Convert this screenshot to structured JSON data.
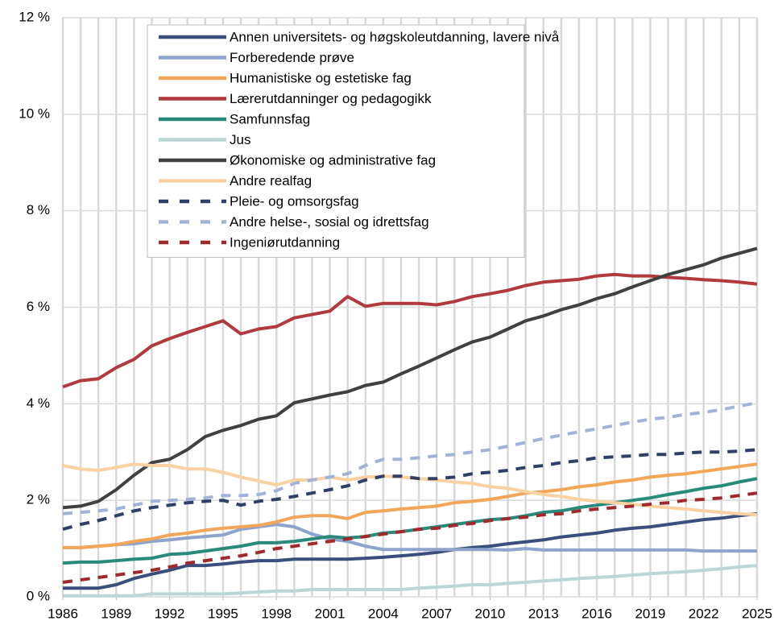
{
  "chart_data": {
    "type": "line",
    "x": [
      1986,
      1987,
      1988,
      1989,
      1990,
      1991,
      1992,
      1993,
      1994,
      1995,
      1996,
      1997,
      1998,
      1999,
      2000,
      2001,
      2002,
      2003,
      2004,
      2005,
      2006,
      2007,
      2008,
      2009,
      2010,
      2011,
      2012,
      2013,
      2014,
      2015,
      2016,
      2017,
      2018,
      2019,
      2020,
      2021,
      2022,
      2023,
      2024,
      2025
    ],
    "xlim": [
      1986,
      2025
    ],
    "xticks": [
      1986,
      1989,
      1992,
      1995,
      1998,
      2001,
      2004,
      2007,
      2010,
      2013,
      2016,
      2019,
      2022,
      2025
    ],
    "ylim": [
      0,
      12
    ],
    "yticks": [
      {
        "value": 0,
        "label": "0 %"
      },
      {
        "value": 2,
        "label": "2 %"
      },
      {
        "value": 4,
        "label": "4 %"
      },
      {
        "value": 6,
        "label": "6 %"
      },
      {
        "value": 8,
        "label": "8 %"
      },
      {
        "value": 10,
        "label": "10 %"
      },
      {
        "value": 12,
        "label": "12 %"
      }
    ],
    "grid": true,
    "legend": "top-center",
    "series": [
      {
        "name": "Annen universitets- og høgskoleutdanning, lavere nivå",
        "color": "#3c4f7c",
        "style": "solid",
        "values": [
          0.18,
          0.18,
          0.18,
          0.25,
          0.38,
          0.47,
          0.55,
          0.65,
          0.65,
          0.68,
          0.72,
          0.75,
          0.75,
          0.78,
          0.78,
          0.78,
          0.78,
          0.8,
          0.82,
          0.85,
          0.88,
          0.92,
          0.98,
          1.02,
          1.05,
          1.1,
          1.14,
          1.18,
          1.24,
          1.28,
          1.32,
          1.38,
          1.42,
          1.45,
          1.5,
          1.55,
          1.6,
          1.63,
          1.68,
          1.72
        ]
      },
      {
        "name": "Forberedende prøve",
        "color": "#8fa3cc",
        "style": "solid",
        "values": [
          1.02,
          1.02,
          1.05,
          1.08,
          1.1,
          1.15,
          1.18,
          1.22,
          1.25,
          1.28,
          1.4,
          1.45,
          1.5,
          1.45,
          1.3,
          1.2,
          1.15,
          1.05,
          0.98,
          0.98,
          0.98,
          0.98,
          0.98,
          0.98,
          0.98,
          0.97,
          1.0,
          0.97,
          0.97,
          0.97,
          0.97,
          0.97,
          0.97,
          0.97,
          0.97,
          0.97,
          0.95,
          0.95,
          0.95,
          0.95
        ]
      },
      {
        "name": "Humanistiske og estetiske fag",
        "color": "#f2a65a",
        "style": "solid",
        "values": [
          1.02,
          1.02,
          1.05,
          1.08,
          1.15,
          1.2,
          1.28,
          1.32,
          1.38,
          1.42,
          1.45,
          1.48,
          1.55,
          1.65,
          1.68,
          1.68,
          1.62,
          1.75,
          1.78,
          1.82,
          1.85,
          1.88,
          1.95,
          1.98,
          2.02,
          2.08,
          2.15,
          2.18,
          2.22,
          2.28,
          2.32,
          2.38,
          2.42,
          2.48,
          2.52,
          2.55,
          2.6,
          2.65,
          2.7,
          2.75
        ]
      },
      {
        "name": "Lærerutdanninger og pedagogikk",
        "color": "#b03a3e",
        "style": "solid",
        "values": [
          4.35,
          4.48,
          4.52,
          4.75,
          4.92,
          5.2,
          5.35,
          5.48,
          5.6,
          5.72,
          5.45,
          5.55,
          5.6,
          5.78,
          5.85,
          5.92,
          6.22,
          6.02,
          6.08,
          6.08,
          6.08,
          6.05,
          6.12,
          6.22,
          6.28,
          6.35,
          6.45,
          6.52,
          6.55,
          6.58,
          6.65,
          6.68,
          6.65,
          6.65,
          6.62,
          6.6,
          6.57,
          6.55,
          6.52,
          6.48
        ]
      },
      {
        "name": "Samfunnsfag",
        "color": "#2a8a7a",
        "style": "solid",
        "values": [
          0.7,
          0.72,
          0.72,
          0.75,
          0.78,
          0.8,
          0.88,
          0.9,
          0.95,
          1.0,
          1.05,
          1.12,
          1.12,
          1.15,
          1.2,
          1.25,
          1.22,
          1.25,
          1.32,
          1.35,
          1.4,
          1.45,
          1.5,
          1.55,
          1.6,
          1.62,
          1.68,
          1.75,
          1.78,
          1.85,
          1.9,
          1.95,
          2.0,
          2.05,
          2.12,
          2.18,
          2.25,
          2.3,
          2.38,
          2.45
        ]
      },
      {
        "name": "Jus",
        "color": "#bcd6d6",
        "style": "solid",
        "values": [
          0.02,
          0.02,
          0.02,
          0.02,
          0.02,
          0.06,
          0.06,
          0.06,
          0.06,
          0.06,
          0.08,
          0.1,
          0.12,
          0.12,
          0.15,
          0.15,
          0.15,
          0.15,
          0.15,
          0.15,
          0.18,
          0.2,
          0.22,
          0.25,
          0.25,
          0.28,
          0.3,
          0.33,
          0.35,
          0.38,
          0.4,
          0.42,
          0.45,
          0.48,
          0.5,
          0.52,
          0.55,
          0.58,
          0.62,
          0.65
        ]
      },
      {
        "name": "Økonomiske og administrative fag",
        "color": "#404040",
        "style": "solid",
        "values": [
          1.85,
          1.88,
          1.98,
          2.22,
          2.52,
          2.78,
          2.85,
          3.05,
          3.32,
          3.45,
          3.55,
          3.68,
          3.75,
          4.02,
          4.1,
          4.18,
          4.25,
          4.38,
          4.45,
          4.62,
          4.78,
          4.95,
          5.12,
          5.28,
          5.38,
          5.55,
          5.72,
          5.82,
          5.95,
          6.05,
          6.18,
          6.28,
          6.42,
          6.55,
          6.68,
          6.78,
          6.88,
          7.02,
          7.12,
          7.22
        ]
      },
      {
        "name": "Andre realfag",
        "color": "#f9d2a4",
        "style": "solid",
        "values": [
          2.72,
          2.65,
          2.62,
          2.68,
          2.75,
          2.72,
          2.72,
          2.65,
          2.65,
          2.58,
          2.48,
          2.4,
          2.32,
          2.42,
          2.42,
          2.48,
          2.42,
          2.48,
          2.5,
          2.48,
          2.45,
          2.42,
          2.38,
          2.35,
          2.28,
          2.25,
          2.18,
          2.12,
          2.08,
          2.02,
          1.98,
          1.95,
          1.92,
          1.88,
          1.85,
          1.82,
          1.78,
          1.75,
          1.72,
          1.7
        ]
      },
      {
        "name": "Pleie- og omsorgsfag",
        "color": "#2f3f66",
        "style": "dashed",
        "values": [
          1.4,
          1.5,
          1.58,
          1.68,
          1.78,
          1.85,
          1.9,
          1.95,
          1.98,
          2.0,
          1.9,
          1.98,
          2.02,
          2.08,
          2.15,
          2.22,
          2.3,
          2.42,
          2.5,
          2.5,
          2.45,
          2.45,
          2.48,
          2.55,
          2.58,
          2.62,
          2.68,
          2.72,
          2.78,
          2.82,
          2.88,
          2.9,
          2.92,
          2.95,
          2.95,
          2.98,
          3.0,
          3.0,
          3.02,
          3.05
        ]
      },
      {
        "name": "Andre helse-, sosial og idrettsfag",
        "color": "#a3b3d6",
        "style": "dashed",
        "values": [
          1.72,
          1.75,
          1.78,
          1.82,
          1.9,
          1.98,
          2.0,
          2.02,
          2.05,
          2.1,
          2.1,
          2.12,
          2.2,
          2.35,
          2.42,
          2.48,
          2.55,
          2.72,
          2.85,
          2.85,
          2.88,
          2.92,
          2.95,
          3.0,
          3.05,
          3.12,
          3.2,
          3.28,
          3.35,
          3.42,
          3.48,
          3.55,
          3.62,
          3.68,
          3.72,
          3.78,
          3.82,
          3.88,
          3.95,
          4.02
        ]
      },
      {
        "name": "Ingeniørutdanning",
        "color": "#9e2a2f",
        "style": "dashed",
        "values": [
          0.3,
          0.35,
          0.4,
          0.45,
          0.5,
          0.55,
          0.62,
          0.7,
          0.75,
          0.8,
          0.85,
          0.92,
          1.0,
          1.05,
          1.1,
          1.15,
          1.2,
          1.25,
          1.3,
          1.35,
          1.4,
          1.42,
          1.48,
          1.52,
          1.58,
          1.62,
          1.65,
          1.7,
          1.72,
          1.78,
          1.82,
          1.85,
          1.88,
          1.92,
          1.95,
          2.0,
          2.02,
          2.05,
          2.1,
          2.15
        ]
      }
    ]
  }
}
